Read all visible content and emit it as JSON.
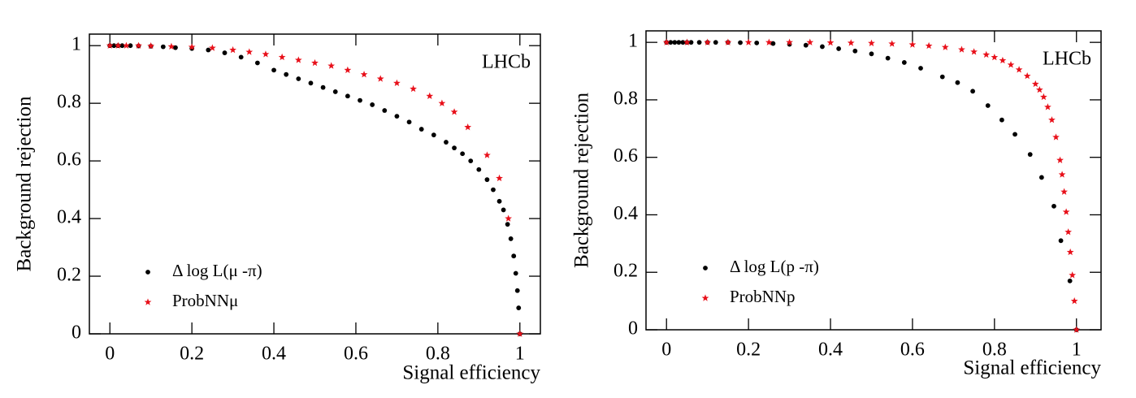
{
  "chart_data": [
    {
      "type": "scatter",
      "annotation": "LHCb",
      "xlabel": "Signal efficiency",
      "ylabel": "Background rejection",
      "xlim": [
        -0.05,
        1.05
      ],
      "ylim": [
        0,
        1.04
      ],
      "xticks": [
        0,
        0.2,
        0.4,
        0.6,
        0.8,
        1
      ],
      "yticks": [
        0,
        0.2,
        0.4,
        0.6,
        0.8,
        1
      ],
      "series": [
        {
          "name": "Δ log L(μ -π)",
          "color": "#000000",
          "marker": "circle",
          "x": [
            0,
            0.01,
            0.02,
            0.03,
            0.05,
            0.07,
            0.1,
            0.13,
            0.16,
            0.2,
            0.24,
            0.28,
            0.32,
            0.36,
            0.4,
            0.43,
            0.46,
            0.49,
            0.52,
            0.55,
            0.58,
            0.61,
            0.64,
            0.67,
            0.7,
            0.73,
            0.76,
            0.79,
            0.82,
            0.84,
            0.86,
            0.88,
            0.9,
            0.92,
            0.935,
            0.95,
            0.96,
            0.97,
            0.978,
            0.985,
            0.99,
            0.994,
            0.997,
            1
          ],
          "values": [
            1,
            1,
            1,
            1,
            1,
            0.999,
            0.998,
            0.996,
            0.993,
            0.99,
            0.985,
            0.975,
            0.96,
            0.94,
            0.915,
            0.9,
            0.885,
            0.87,
            0.855,
            0.84,
            0.825,
            0.81,
            0.795,
            0.775,
            0.755,
            0.735,
            0.71,
            0.69,
            0.665,
            0.645,
            0.625,
            0.6,
            0.57,
            0.535,
            0.5,
            0.46,
            0.43,
            0.38,
            0.33,
            0.27,
            0.21,
            0.15,
            0.09,
            0
          ]
        },
        {
          "name": "ProbNNμ",
          "color": "#e8101a",
          "marker": "star",
          "x": [
            0,
            0.02,
            0.04,
            0.07,
            0.1,
            0.15,
            0.2,
            0.25,
            0.3,
            0.34,
            0.38,
            0.42,
            0.46,
            0.5,
            0.54,
            0.58,
            0.62,
            0.66,
            0.7,
            0.74,
            0.78,
            0.81,
            0.84,
            0.873,
            0.92,
            0.95,
            0.972,
            1
          ],
          "values": [
            1,
            1,
            1,
            1,
            0.999,
            0.997,
            0.995,
            0.992,
            0.985,
            0.978,
            0.97,
            0.96,
            0.95,
            0.94,
            0.93,
            0.915,
            0.9,
            0.885,
            0.87,
            0.85,
            0.825,
            0.8,
            0.77,
            0.717,
            0.62,
            0.54,
            0.4,
            0
          ]
        }
      ]
    },
    {
      "type": "scatter",
      "annotation": "LHCb",
      "xlabel": "Signal efficiency",
      "ylabel": "Background rejection",
      "xlim": [
        -0.05,
        1.06
      ],
      "ylim": [
        0,
        1.04
      ],
      "xticks": [
        0,
        0.2,
        0.4,
        0.6,
        0.8,
        1
      ],
      "yticks": [
        0,
        0.2,
        0.4,
        0.6,
        0.8,
        1
      ],
      "series": [
        {
          "name": "Δ log L(p -π)",
          "color": "#000000",
          "marker": "circle",
          "x": [
            0,
            0.01,
            0.02,
            0.03,
            0.04,
            0.05,
            0.06,
            0.08,
            0.1,
            0.12,
            0.15,
            0.18,
            0.22,
            0.26,
            0.3,
            0.34,
            0.38,
            0.42,
            0.46,
            0.5,
            0.54,
            0.58,
            0.62,
            0.673,
            0.71,
            0.747,
            0.784,
            0.818,
            0.85,
            0.887,
            0.915,
            0.945,
            0.962,
            0.984,
            1
          ],
          "values": [
            1,
            1,
            1,
            1,
            1,
            1,
            1,
            1,
            1,
            1,
            1,
            0.999,
            0.998,
            0.996,
            0.993,
            0.99,
            0.985,
            0.978,
            0.97,
            0.96,
            0.945,
            0.93,
            0.91,
            0.88,
            0.86,
            0.83,
            0.78,
            0.73,
            0.68,
            0.61,
            0.53,
            0.43,
            0.31,
            0.17,
            0
          ]
        },
        {
          "name": "ProbNNp",
          "color": "#e8101a",
          "marker": "star",
          "x": [
            0,
            0.05,
            0.1,
            0.15,
            0.2,
            0.25,
            0.3,
            0.35,
            0.4,
            0.45,
            0.5,
            0.55,
            0.6,
            0.64,
            0.68,
            0.72,
            0.75,
            0.78,
            0.8,
            0.82,
            0.84,
            0.86,
            0.88,
            0.9,
            0.91,
            0.92,
            0.93,
            0.94,
            0.95,
            0.96,
            0.965,
            0.97,
            0.975,
            0.98,
            0.985,
            0.99,
            0.995,
            1
          ],
          "values": [
            1,
            1,
            1,
            1,
            1,
            1,
            1,
            1,
            0.999,
            0.998,
            0.997,
            0.995,
            0.992,
            0.988,
            0.983,
            0.975,
            0.967,
            0.957,
            0.948,
            0.937,
            0.922,
            0.905,
            0.883,
            0.855,
            0.835,
            0.81,
            0.775,
            0.73,
            0.67,
            0.59,
            0.54,
            0.48,
            0.41,
            0.34,
            0.27,
            0.19,
            0.1,
            0
          ]
        }
      ]
    }
  ]
}
